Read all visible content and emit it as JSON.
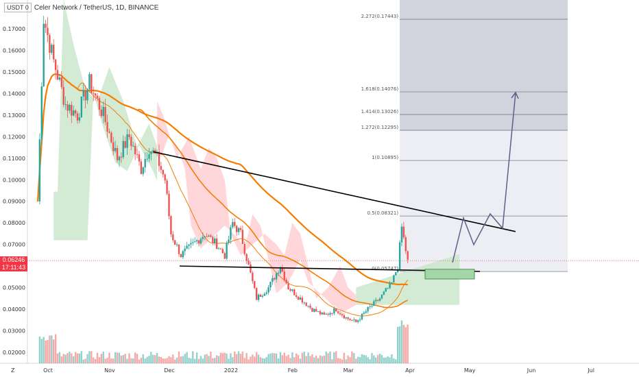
{
  "header": {
    "currency": "USDT",
    "currency_suffix": "0",
    "title": "Celer Network / TetherUS, 1D, BINANCE"
  },
  "price_tag": {
    "price": "0.06246",
    "countdown": "17:11:43"
  },
  "chart_data": {
    "type": "candlestick",
    "title": "Celer Network / TetherUS, 1D, BINANCE",
    "ylim": [
      0.0155,
      0.1805
    ],
    "y_ticks": [
      "0.17000",
      "0.16000",
      "0.15000",
      "0.14000",
      "0.13000",
      "0.12000",
      "0.11000",
      "0.10000",
      "0.09000",
      "0.08000",
      "0.07000",
      "0.06000",
      "0.05000",
      "0.04000",
      "0.03000",
      "0.02000"
    ],
    "x_ticks": [
      "Oct",
      "Nov",
      "Dec",
      "2022",
      "Feb",
      "Mar",
      "Apr",
      "May",
      "Jun",
      "Jul"
    ],
    "last_price": 0.06246,
    "fib_levels": [
      {
        "label": "0(0.05747)",
        "value": 0.05747
      },
      {
        "label": "0.5(0.08321)",
        "value": 0.08321
      },
      {
        "label": "1(0.10895)",
        "value": 0.10895
      },
      {
        "label": "1.272(0.12295)",
        "value": 0.12295
      },
      {
        "label": "1.414(0.13026)",
        "value": 0.13026
      },
      {
        "label": "1.618(0.14076)",
        "value": 0.14076
      },
      {
        "label": "2.272(0.17443)",
        "value": 0.17443
      }
    ],
    "colors": {
      "up": "#26a69a",
      "down": "#ef5350",
      "ema": "#f57c00",
      "cloud_up": "#c8e6c9",
      "cloud_down": "#ffcdd2",
      "fib_shade": "#d1d4dc",
      "forecast": "#5c5f8a",
      "price_line": "#f23645"
    }
  }
}
